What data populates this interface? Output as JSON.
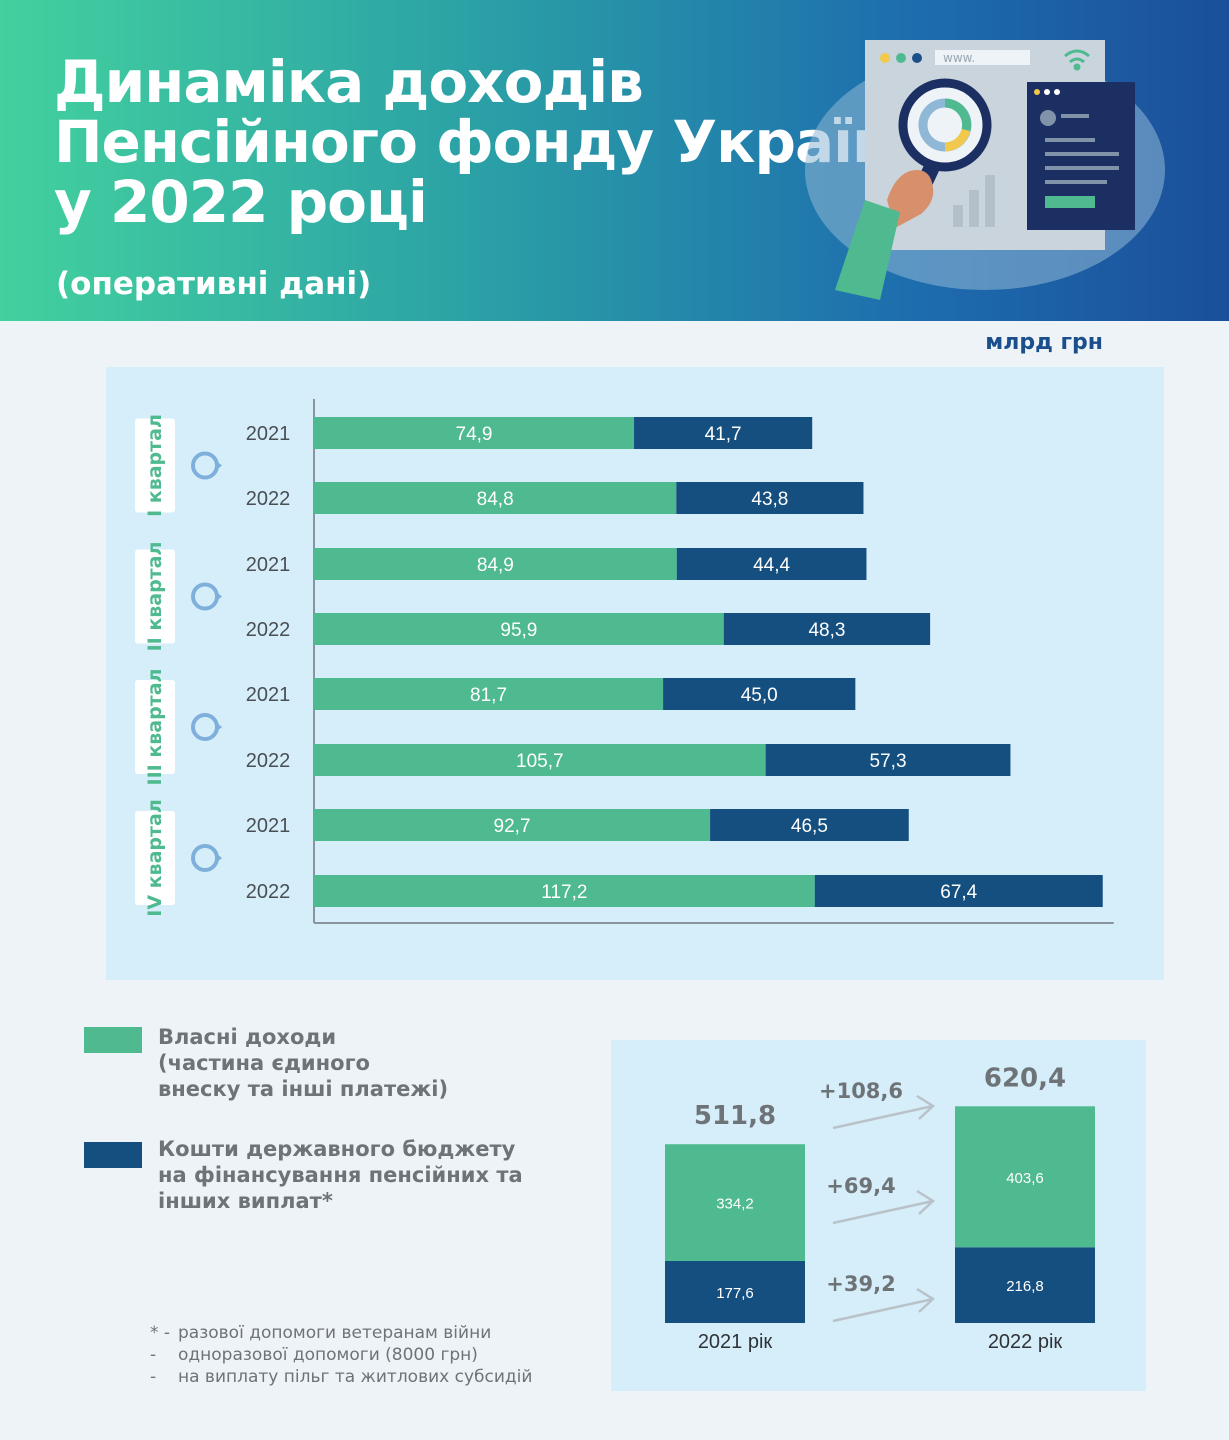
{
  "header": {
    "title_lines": [
      "Динаміка доходів",
      "Пенсійного фонду України",
      "у 2022 році"
    ],
    "subtitle": "(оперативні дані)",
    "illustration_icons": [
      "browser-window-icon",
      "magnifier-icon",
      "donut-chart-icon",
      "bar-chart-icon",
      "document-card-icon",
      "wifi-icon",
      "hand-icon"
    ],
    "url_text": "www."
  },
  "unit": "млрд грн",
  "chart_data": [
    {
      "type": "bar",
      "orientation": "horizontal",
      "stacked": true,
      "groups": [
        "I квартал",
        "II квартал",
        "III квартал",
        "IV квартал"
      ],
      "categories": [
        "2021",
        "2022",
        "2021",
        "2022",
        "2021",
        "2022",
        "2021",
        "2022"
      ],
      "series": [
        {
          "name": "Власні доходи (частина єдиного внеску та інші платежі)",
          "color": "#4fba90",
          "values": [
            74.9,
            84.8,
            84.9,
            95.9,
            81.7,
            105.7,
            92.7,
            117.2
          ],
          "labels": [
            "74,9",
            "84,8",
            "84,9",
            "95,9",
            "81,7",
            "105,7",
            "92,7",
            "117,2"
          ]
        },
        {
          "name": "Кошти державного бюджету на фінансування пенсійних та інших виплат*",
          "color": "#154f80",
          "values": [
            41.7,
            43.8,
            44.4,
            48.3,
            45.0,
            57.3,
            46.5,
            67.4
          ],
          "labels": [
            "41,7",
            "43,8",
            "44,4",
            "48,3",
            "45,0",
            "57,3",
            "46,5",
            "67,4"
          ]
        }
      ],
      "xlim": [
        0,
        186
      ],
      "grid": false
    },
    {
      "type": "bar",
      "stacked": true,
      "categories": [
        "2021 рік",
        "2022 рік"
      ],
      "totals": [
        511.8,
        620.4
      ],
      "total_labels": [
        "511,8",
        "620,4"
      ],
      "series": [
        {
          "name": "Власні доходи",
          "color": "#4fba90",
          "values": [
            334.2,
            403.6
          ],
          "labels": [
            "334,2",
            "403,6"
          ]
        },
        {
          "name": "Кошти державного бюджету",
          "color": "#154f80",
          "values": [
            177.6,
            216.8
          ],
          "labels": [
            "177,6",
            "216,8"
          ]
        }
      ],
      "changes": [
        "+108,6",
        "+69,4",
        "+39,2"
      ],
      "ylim": [
        0,
        620.4
      ]
    }
  ],
  "legend": {
    "items": [
      {
        "color": "#4fba90",
        "lines": [
          "Власні доходи",
          "(частина єдиного",
          "внеску та інші платежі)"
        ]
      },
      {
        "color": "#154f80",
        "lines": [
          "Кошти державного бюджету",
          "на фінансування пенсійних та",
          "інших виплат*"
        ]
      }
    ]
  },
  "footnote": {
    "mark": "* -",
    "lines": [
      "разової допомоги ветеранам війни",
      "одноразової допомоги (8000 грн)",
      "на виплату пільг та житлових субсидій"
    ],
    "dash": "-"
  },
  "colors": {
    "green": "#4fba90",
    "navy": "#154f80",
    "panel": "#d6eef9",
    "axis_text": "#4a4f55"
  }
}
